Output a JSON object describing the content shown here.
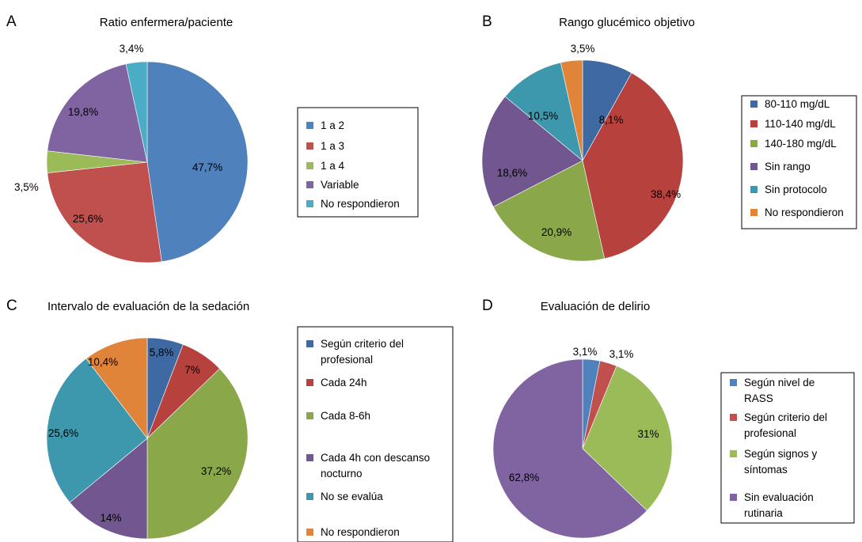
{
  "chart_data": [
    {
      "type": "pie",
      "panel": "A",
      "title": "Ratio enfermera/paciente",
      "categories": [
        "1 a 2",
        "1 a 3",
        "1 a 4",
        "Variable",
        "No respondieron"
      ],
      "values": [
        47.7,
        25.6,
        3.5,
        19.8,
        3.4
      ],
      "labels": [
        "47,7%",
        "25,6%",
        "3,5%",
        "19,8%",
        "3,4%"
      ],
      "colors": [
        "#4f81bd",
        "#c0504d",
        "#9bbb59",
        "#8064a2",
        "#4bacc6"
      ],
      "legend": "right"
    },
    {
      "type": "pie",
      "panel": "B",
      "title": "Rango glucémico objetivo",
      "categories": [
        "80-110 mg/dL",
        "110-140 mg/dL",
        "140-180 mg/dL",
        "Sin rango",
        "Sin protocolo",
        "No respondieron"
      ],
      "values": [
        8.1,
        38.4,
        20.9,
        18.6,
        10.5,
        3.5
      ],
      "labels": [
        "8,1%",
        "38,4%",
        "20,9%",
        "18,6%",
        "10,5%",
        "3,5%"
      ],
      "colors": [
        "#3f69a3",
        "#b7413d",
        "#8aa74a",
        "#71568f",
        "#3d98ae",
        "#e0843a"
      ],
      "legend": "right"
    },
    {
      "type": "pie",
      "panel": "C",
      "title": "Intervalo de evaluación de la sedación",
      "categories": [
        "Según criterio del profesional",
        "Cada 24h",
        "Cada 8-6h",
        "Cada 4h con descanso nocturno",
        "No se evalúa",
        "No respondieron"
      ],
      "values": [
        5.8,
        7,
        37.2,
        14,
        25.6,
        10.4
      ],
      "labels": [
        "5,8%",
        "7%",
        "37,2%",
        "14%",
        "25,6%",
        "10,4%"
      ],
      "colors": [
        "#3f69a3",
        "#b7413d",
        "#8aa74a",
        "#71568f",
        "#3d98ae",
        "#e0843a"
      ],
      "legend": "right"
    },
    {
      "type": "pie",
      "panel": "D",
      "title": "Evaluación de delirio",
      "categories": [
        "Según nivel de RASS",
        "Según criterio del profesional",
        "Según signos y síntomas",
        "Sin evaluación rutinaria"
      ],
      "values": [
        3.1,
        3.1,
        31,
        62.8
      ],
      "labels": [
        "3,1%",
        "3,1%",
        "31%",
        "62,8%"
      ],
      "colors": [
        "#4f81bd",
        "#c0504d",
        "#9bbb59",
        "#8064a2"
      ],
      "legend": "right"
    }
  ]
}
